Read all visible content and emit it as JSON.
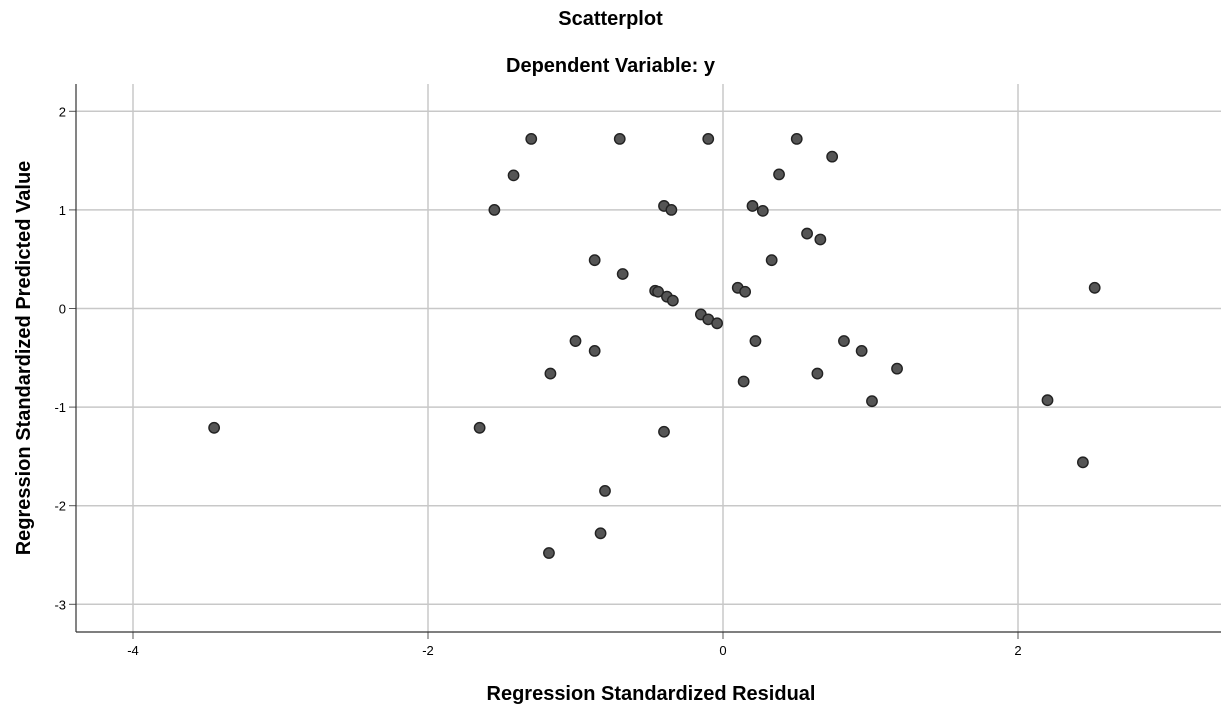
{
  "chart_data": {
    "type": "scatter",
    "title": "Scatterplot",
    "subtitle": "Dependent Variable: y",
    "xlabel": "Regression Standardized Residual",
    "ylabel": "Regression Standardized Predicted Value",
    "xlim": [
      -4.4,
      3.4
    ],
    "ylim": [
      -3.25,
      2.25
    ],
    "xticks": [
      -4,
      -2,
      0,
      2
    ],
    "yticks": [
      2,
      1,
      0,
      -1,
      -2,
      -3
    ],
    "grid": true,
    "point_color": "#555555",
    "points": [
      {
        "x": -1.3,
        "y": 1.72
      },
      {
        "x": -0.7,
        "y": 1.72
      },
      {
        "x": -0.1,
        "y": 1.72
      },
      {
        "x": 0.5,
        "y": 1.72
      },
      {
        "x": 0.74,
        "y": 1.54
      },
      {
        "x": -1.42,
        "y": 1.35
      },
      {
        "x": 0.38,
        "y": 1.36
      },
      {
        "x": -1.55,
        "y": 1.0
      },
      {
        "x": -0.4,
        "y": 1.04
      },
      {
        "x": -0.35,
        "y": 1.0
      },
      {
        "x": 0.2,
        "y": 1.04
      },
      {
        "x": 0.27,
        "y": 0.99
      },
      {
        "x": 0.57,
        "y": 0.76
      },
      {
        "x": 0.66,
        "y": 0.7
      },
      {
        "x": -0.87,
        "y": 0.49
      },
      {
        "x": 0.33,
        "y": 0.49
      },
      {
        "x": -0.68,
        "y": 0.35
      },
      {
        "x": -0.46,
        "y": 0.18
      },
      {
        "x": -0.44,
        "y": 0.17
      },
      {
        "x": -0.38,
        "y": 0.12
      },
      {
        "x": -0.34,
        "y": 0.08
      },
      {
        "x": 0.1,
        "y": 0.21
      },
      {
        "x": 0.15,
        "y": 0.17
      },
      {
        "x": 2.52,
        "y": 0.21
      },
      {
        "x": -0.15,
        "y": -0.06
      },
      {
        "x": -0.1,
        "y": -0.11
      },
      {
        "x": -0.04,
        "y": -0.15
      },
      {
        "x": -1.0,
        "y": -0.33
      },
      {
        "x": -0.87,
        "y": -0.43
      },
      {
        "x": 0.22,
        "y": -0.33
      },
      {
        "x": 0.82,
        "y": -0.33
      },
      {
        "x": 0.94,
        "y": -0.43
      },
      {
        "x": -1.17,
        "y": -0.66
      },
      {
        "x": 0.64,
        "y": -0.66
      },
      {
        "x": 1.18,
        "y": -0.61
      },
      {
        "x": 0.14,
        "y": -0.74
      },
      {
        "x": 1.01,
        "y": -0.94
      },
      {
        "x": 2.2,
        "y": -0.93
      },
      {
        "x": -3.45,
        "y": -1.21
      },
      {
        "x": -1.65,
        "y": -1.21
      },
      {
        "x": -0.4,
        "y": -1.25
      },
      {
        "x": 2.44,
        "y": -1.56
      },
      {
        "x": -0.8,
        "y": -1.85
      },
      {
        "x": -0.83,
        "y": -2.28
      },
      {
        "x": -1.18,
        "y": -2.48
      }
    ]
  }
}
